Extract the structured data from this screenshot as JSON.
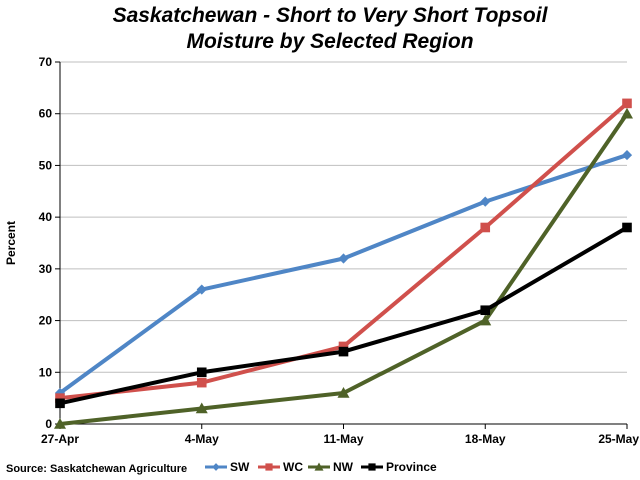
{
  "chart_data": {
    "type": "line",
    "title_lines": [
      "Saskatchewan - Short to Very Short Topsoil",
      "Moisture by Selected Region"
    ],
    "xlabel": "",
    "ylabel": "Percent",
    "categories": [
      "27-Apr",
      "4-May",
      "11-May",
      "18-May",
      "25-May"
    ],
    "ylim": [
      0,
      70
    ],
    "yticks": [
      0,
      10,
      20,
      30,
      40,
      50,
      60,
      70
    ],
    "grid": "horizontal",
    "legend_position": "bottom",
    "series": [
      {
        "name": "SW",
        "color": "#4F86C6",
        "marker": "diamond",
        "values": [
          6,
          26,
          32,
          43,
          52
        ]
      },
      {
        "name": "WC",
        "color": "#D0504C",
        "marker": "square",
        "values": [
          5,
          8,
          15,
          38,
          62
        ]
      },
      {
        "name": "NW",
        "color": "#4F6228",
        "marker": "triangle",
        "values": [
          0,
          3,
          6,
          20,
          60
        ]
      },
      {
        "name": "Province",
        "color": "#000000",
        "marker": "square",
        "values": [
          4,
          10,
          14,
          22,
          38
        ]
      }
    ],
    "source": "Source: Saskatchewan Agriculture"
  }
}
